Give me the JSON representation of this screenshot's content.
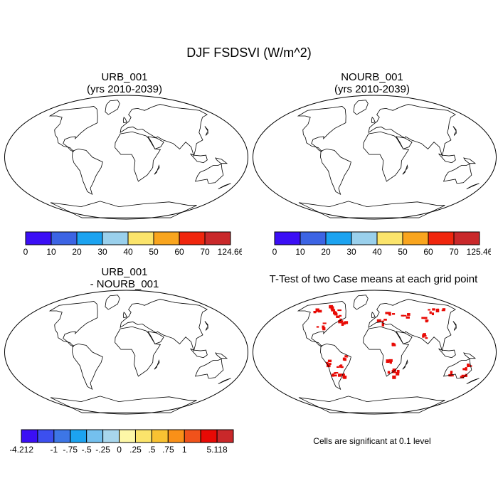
{
  "main_title": "DJF FSDSVI (W/m^2)",
  "panels": [
    {
      "id": "urb",
      "title_line1": "URB_001",
      "title_line2": "(yrs 2010-2039)"
    },
    {
      "id": "nourb",
      "title_line1": "NOURB_001",
      "title_line2": "(yrs 2010-2039)"
    },
    {
      "id": "diff",
      "title_line1": "URB_001",
      "title_line2": "- NOURB_001"
    },
    {
      "id": "ttest",
      "title_line1": "T-Test of two Case means at each grid point",
      "title_line2": ""
    }
  ],
  "colorbars": {
    "urb": {
      "colors": [
        "#3b0ff5",
        "#3c64e4",
        "#1ca3f0",
        "#9ad0ec",
        "#fbe46b",
        "#f9a51e",
        "#f0260d",
        "#c9282a"
      ],
      "labels": [
        "0",
        "10",
        "20",
        "30",
        "40",
        "50",
        "60",
        "70",
        "124.66"
      ]
    },
    "nourb": {
      "colors": [
        "#3b0ff5",
        "#3c64e4",
        "#1ca3f0",
        "#9ad0ec",
        "#fbe46b",
        "#f9a51e",
        "#f0260d",
        "#c9282a"
      ],
      "labels": [
        "0",
        "10",
        "20",
        "30",
        "40",
        "50",
        "60",
        "70",
        "125.46"
      ]
    },
    "diff": {
      "colors": [
        "#3b0ff5",
        "#3c4fef",
        "#3d76e6",
        "#1ca3f0",
        "#74c0ee",
        "#a8d6ec",
        "#fdf7a7",
        "#fbe46b",
        "#f9c232",
        "#f99018",
        "#f0521b",
        "#e80a05",
        "#c9282a"
      ],
      "labels": [
        "-4.212",
        "",
        "-1",
        "-.75",
        "-.5",
        "-.25",
        "0",
        ".25",
        ".5",
        ".75",
        "1",
        "",
        "5.118"
      ]
    }
  },
  "ttest_note": "Cells are significant at 0.1 level",
  "map_colors": {
    "polar": "#3b0ff5",
    "high_lat": "#3c64e4",
    "mid_lat": "#1ca3f0",
    "subtrop": "#9ad0ec",
    "warm": "#fbe46b",
    "hot": "#f9a51e",
    "red": "#f0260d",
    "dark_red": "#c9282a",
    "significant": "#e80a05"
  }
}
